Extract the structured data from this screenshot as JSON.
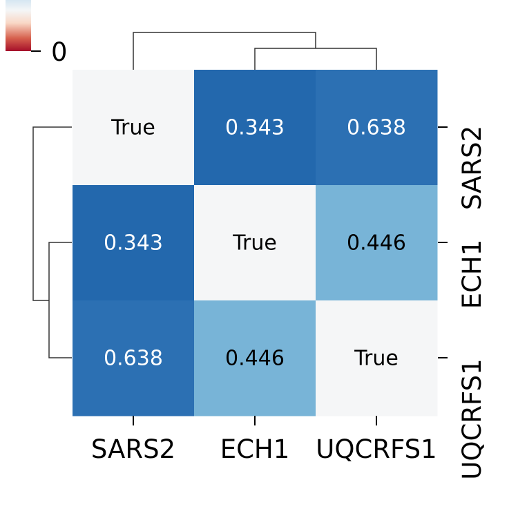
{
  "chart_data": {
    "type": "heatmap",
    "title": "",
    "xlabel": "",
    "ylabel": "",
    "x_categories": [
      "SARS2",
      "ECH1",
      "UQCRFS1"
    ],
    "y_categories": [
      "SARS2",
      "ECH1",
      "UQCRFS1"
    ],
    "values": [
      [
        0.0,
        0.343,
        0.638
      ],
      [
        0.343,
        0.0,
        0.446
      ],
      [
        0.638,
        0.446,
        0.0
      ]
    ],
    "cell_labels": [
      [
        "True",
        "0.343",
        "0.638"
      ],
      [
        "0.343",
        "True",
        "0.446"
      ],
      [
        "0.638",
        "0.446",
        "True"
      ]
    ],
    "colormap": "RdBu",
    "colors": {
      "diagonal": "#f5f6f7",
      "strong": "#2368ad",
      "strong_alt": "#2c70b3",
      "medium": "#78b4d7",
      "text_dark": "#000000",
      "text_light": "#ffffff"
    },
    "colorbar": {
      "tick_labels": [
        "0"
      ]
    },
    "dendrograms": {
      "column": "top",
      "row": "left"
    },
    "legend": "none",
    "grid": false
  }
}
